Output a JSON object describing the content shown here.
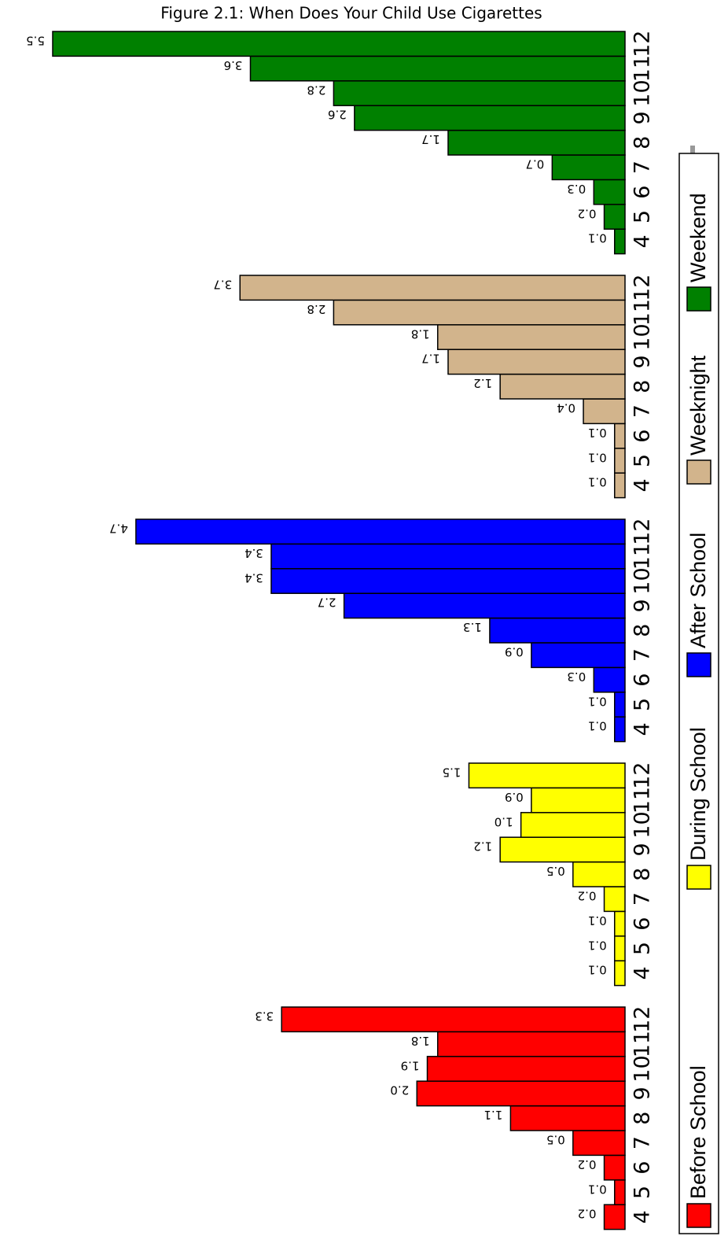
{
  "chart_data": {
    "type": "bar",
    "title": "Figure 2.1: When Does Your Child Use Cigarettes",
    "categories": [
      "4",
      "5",
      "6",
      "7",
      "8",
      "9",
      "10",
      "11",
      "12"
    ],
    "series": [
      {
        "name": "Before School",
        "color": "#ff0000",
        "values": [
          0.2,
          0.1,
          0.2,
          0.5,
          1.1,
          2.0,
          1.9,
          1.8,
          3.3
        ],
        "value_labels": [
          "0.2",
          "0.1",
          "0.2",
          "0.5",
          "1.1",
          "2.0",
          "1.9",
          "1.8",
          "3.3"
        ]
      },
      {
        "name": "During School",
        "color": "#ffff00",
        "values": [
          0.1,
          0.1,
          0.1,
          0.2,
          0.5,
          1.2,
          1.0,
          0.9,
          1.5
        ],
        "value_labels": [
          "0.1",
          "0.1",
          "0.1",
          "0.2",
          "0.5",
          "1.2",
          "1.0",
          "0.9",
          "1.5"
        ]
      },
      {
        "name": "After School",
        "color": "#0000ff",
        "values": [
          0.1,
          0.1,
          0.3,
          0.9,
          1.3,
          2.7,
          3.4,
          3.4,
          4.7
        ],
        "value_labels": [
          "0.1",
          "0.1",
          "0.3",
          "0.9",
          "1.3",
          "2.7",
          "3.4",
          "3.4",
          "4.7"
        ]
      },
      {
        "name": "Weeknight",
        "color": "#d2b48c",
        "values": [
          0.1,
          0.1,
          0.1,
          0.4,
          1.2,
          1.7,
          1.8,
          2.8,
          3.7
        ],
        "value_labels": [
          "0.1",
          "0.1",
          "0.1",
          "0.4",
          "1.2",
          "1.7",
          "1.8",
          "2.8",
          "3.7"
        ]
      },
      {
        "name": "Weekend",
        "color": "#008000",
        "values": [
          0.1,
          0.2,
          0.3,
          0.7,
          1.7,
          2.6,
          2.8,
          3.6,
          5.5
        ],
        "value_labels": [
          "0.1",
          "0.2",
          "0.3",
          "0.7",
          "1.7",
          "2.6",
          "2.8",
          "3.6",
          "5.5"
        ]
      }
    ]
  }
}
